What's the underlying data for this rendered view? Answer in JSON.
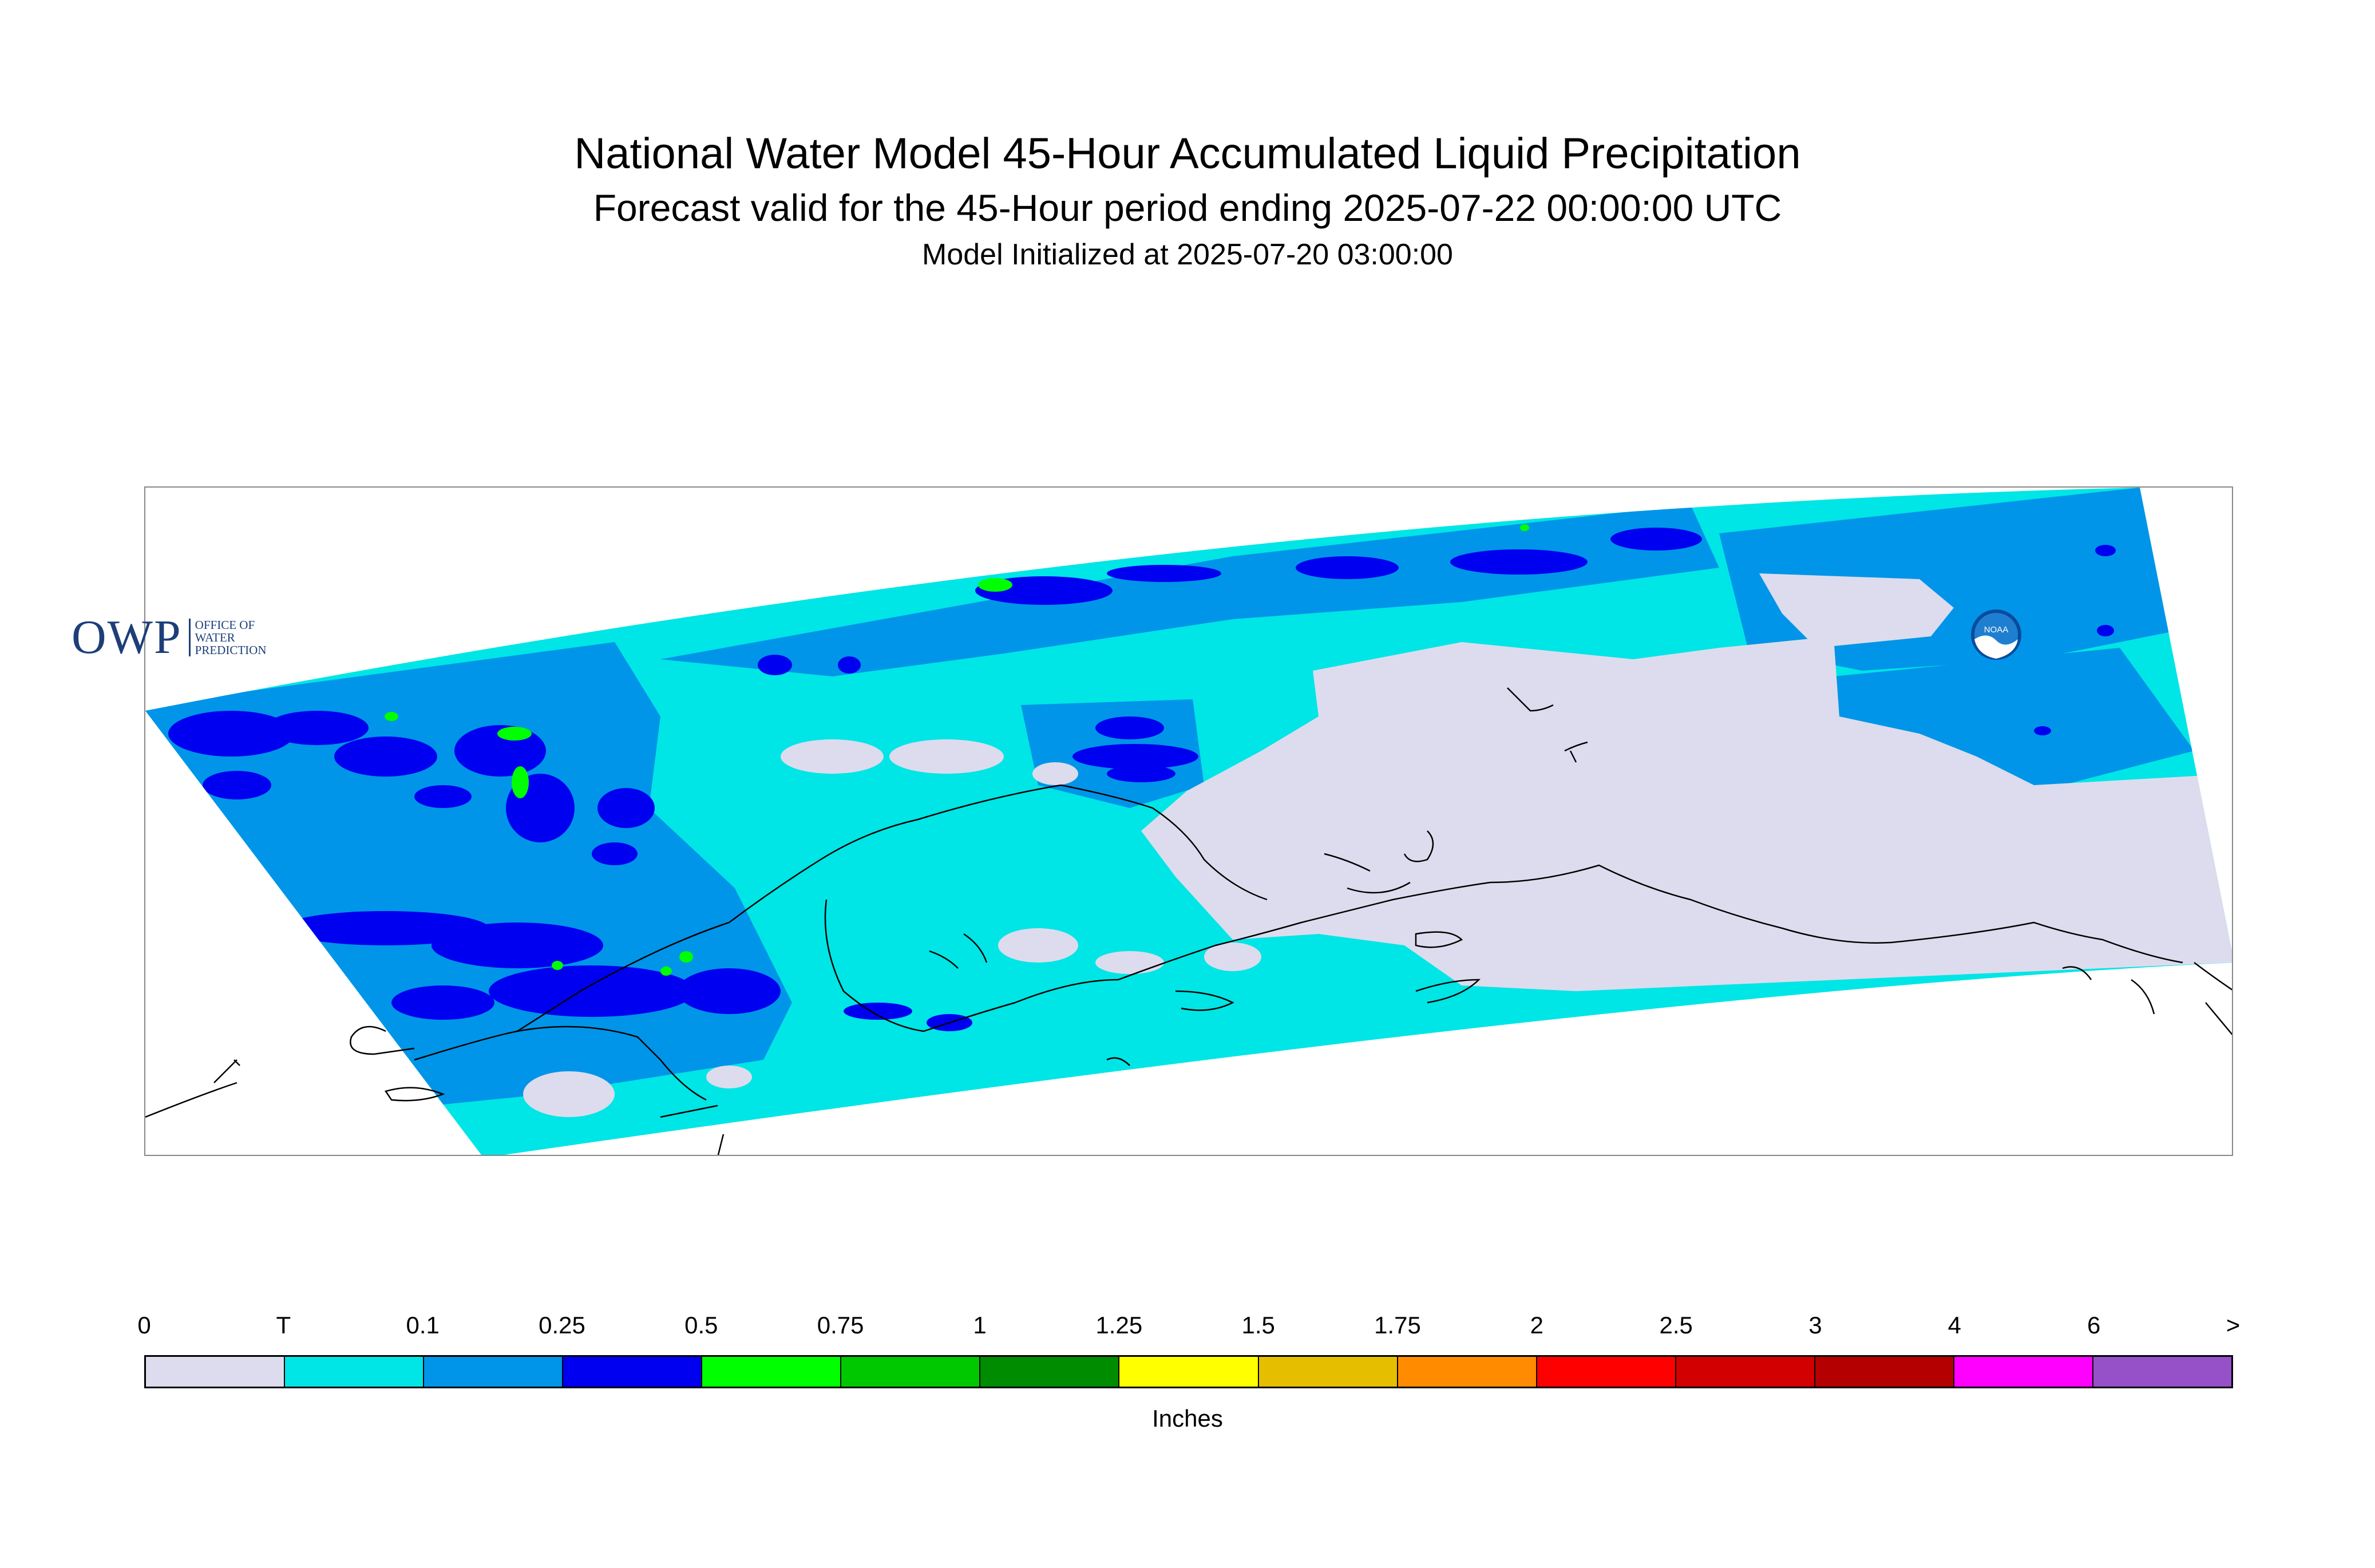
{
  "title": "National Water Model 45-Hour Accumulated Liquid Precipitation",
  "subtitle": "Forecast valid for the 45-Hour period ending 2025-07-22 00:00:00 UTC",
  "init_line": "Model Initialized at 2025-07-20 03:00:00",
  "logos": {
    "owp_letters": "OWP",
    "owp_lines": [
      "OFFICE OF",
      "WATER",
      "PREDICTION"
    ],
    "noaa_text": "NOAA"
  },
  "legend": {
    "labels": [
      "0",
      "T",
      "0.1",
      "0.25",
      "0.5",
      "0.75",
      "1",
      "1.25",
      "1.5",
      "1.75",
      "2",
      "2.5",
      "3",
      "4",
      "6",
      ">"
    ],
    "colors": [
      "#dcdcee",
      "#00e5e5",
      "#0095e8",
      "#0000f0",
      "#00ff00",
      "#00c800",
      "#008c00",
      "#ffff00",
      "#e6be00",
      "#ff8c00",
      "#ff0000",
      "#d20000",
      "#b40000",
      "#ff00ff",
      "#9650c8"
    ],
    "units": "Inches"
  }
}
